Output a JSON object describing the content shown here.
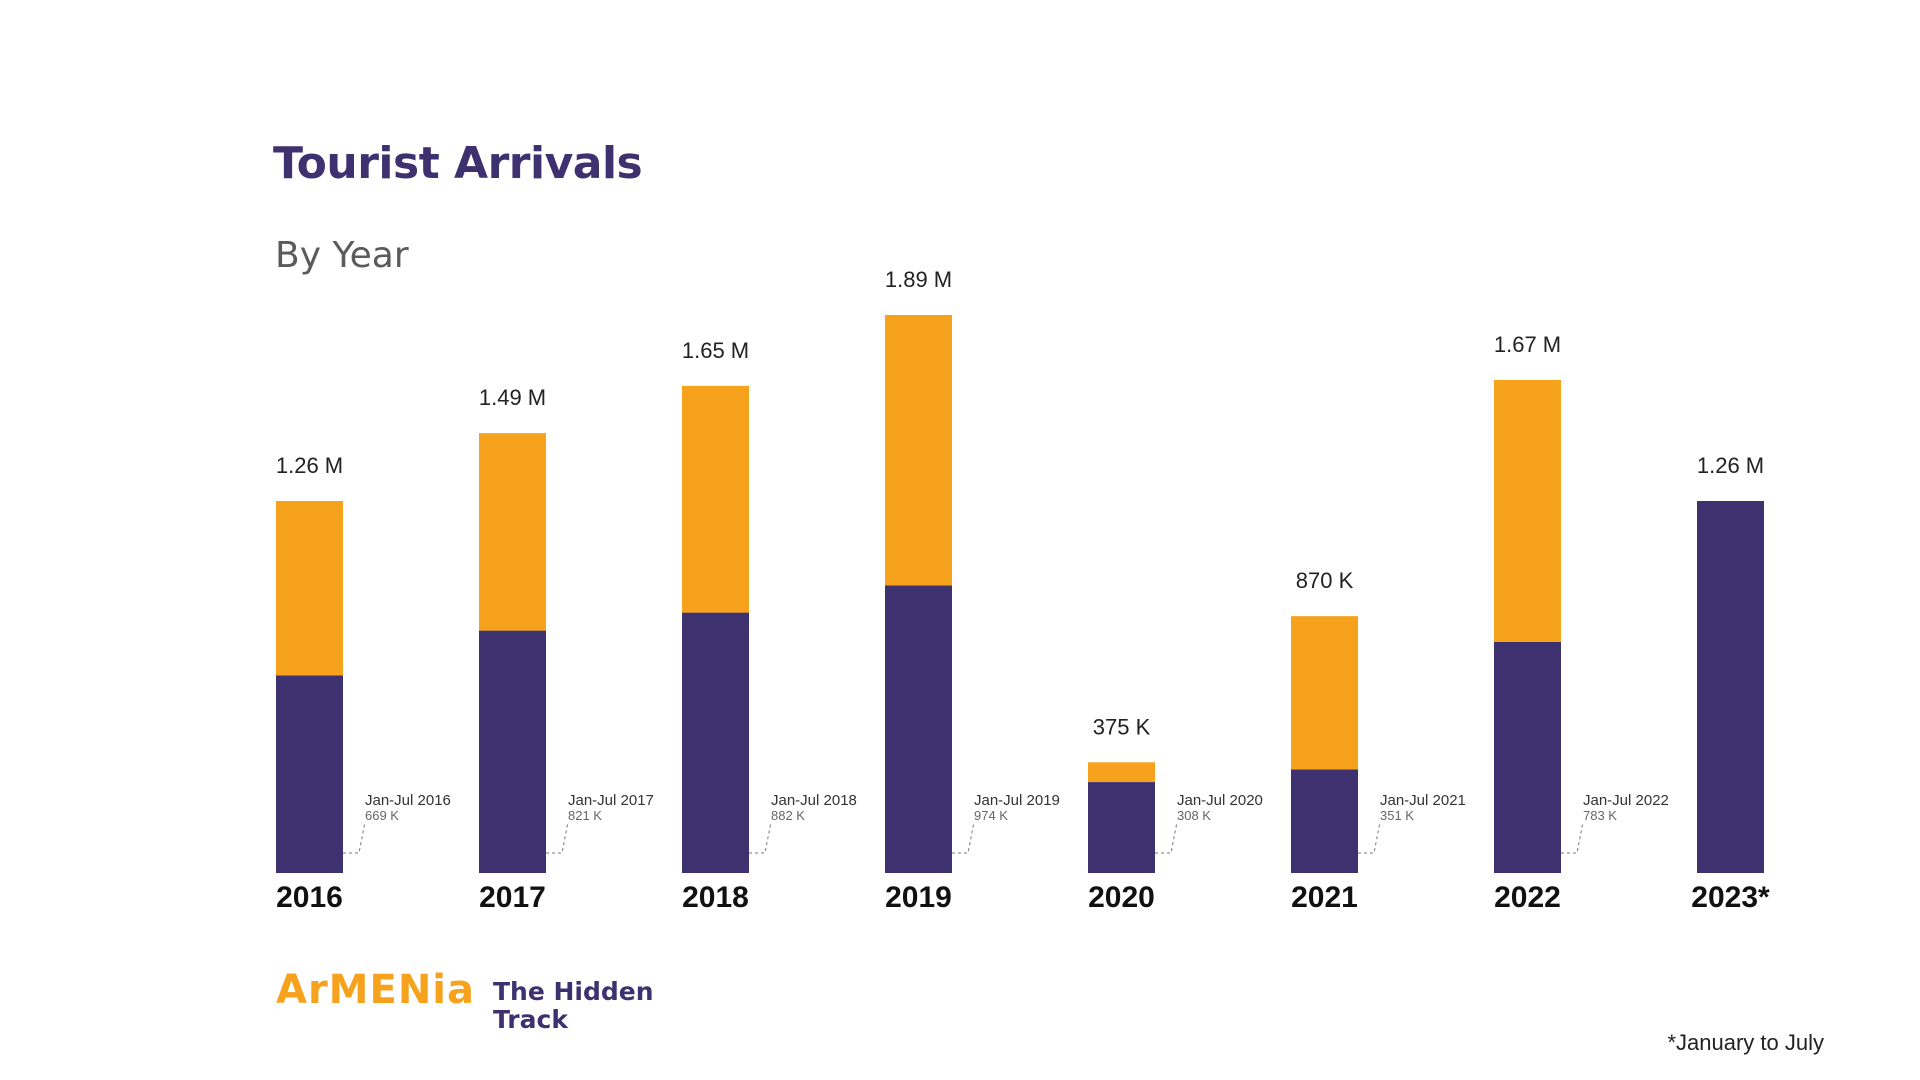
{
  "header": {
    "title": "Tourist Arrivals",
    "subtitle": "By Year"
  },
  "footnote": "*January to July",
  "logo": {
    "brand": "ArMENia",
    "tagline_line1": "The Hidden",
    "tagline_line2": "Track"
  },
  "colors": {
    "jan_jul": "#3e3170",
    "rest_of_year": "#f7a21d",
    "title": "#3e3170"
  },
  "chart_data": {
    "type": "bar",
    "stacked": true,
    "title": "Tourist Arrivals",
    "subtitle": "By Year",
    "categories": [
      "2016",
      "2017",
      "2018",
      "2019",
      "2020",
      "2021",
      "2022",
      "2023*"
    ],
    "totals": [
      1260000,
      1490000,
      1650000,
      1890000,
      375000,
      870000,
      1670000,
      1260000
    ],
    "total_labels": [
      "1.26 M",
      "1.49 M",
      "1.65 M",
      "1.89 M",
      "375 K",
      "870 K",
      "1.67 M",
      "1.26 M"
    ],
    "series": [
      {
        "values": [
          669000,
          821000,
          882000,
          974000,
          308000,
          351000,
          783000,
          1260000
        ],
        "color": "#3e3170"
      },
      {
        "values": [
          591000,
          669000,
          768000,
          916000,
          67000,
          519000,
          887000,
          0
        ],
        "color": "#f7a21d"
      }
    ],
    "annotations": [
      {
        "label": "Jan-Jul 2016",
        "value": "669 K"
      },
      {
        "label": "Jan-Jul 2017",
        "value": "821 K"
      },
      {
        "label": "Jan-Jul 2018",
        "value": "882 K"
      },
      {
        "label": "Jan-Jul 2019",
        "value": "974 K"
      },
      {
        "label": "Jan-Jul 2020",
        "value": "308 K"
      },
      {
        "label": "Jan-Jul 2021",
        "value": "351 K"
      },
      {
        "label": "Jan-Jul 2022",
        "value": "783 K"
      }
    ],
    "ylim": [
      0,
      1890000
    ],
    "grid": false,
    "legend": "none"
  }
}
